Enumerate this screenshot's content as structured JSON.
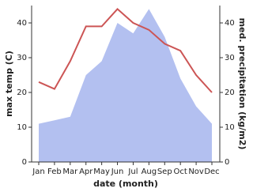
{
  "chart_data": {
    "type": "line",
    "categories": [
      "Jan",
      "Feb",
      "Mar",
      "Apr",
      "May",
      "Jun",
      "Jul",
      "Aug",
      "Sep",
      "Oct",
      "Nov",
      "Dec"
    ],
    "series": [
      {
        "name": "med. precipitation (kg/m2)",
        "type": "area",
        "color": "#b3c0f0",
        "axis": "y2",
        "values": [
          11,
          12,
          13,
          25,
          29,
          40,
          37,
          44,
          36,
          24,
          16,
          11
        ]
      },
      {
        "name": "max temp (C)",
        "type": "line",
        "color": "#cc5555",
        "values": [
          23,
          21,
          29,
          39,
          39,
          44,
          40,
          38,
          34,
          32,
          25,
          20
        ]
      }
    ],
    "ylabel": "max temp (C)",
    "y2label": "med. precipitation (kg/m2)",
    "xlabel": "date (month)",
    "ylim": [
      0,
      45
    ],
    "yticks": [
      0,
      10,
      20,
      30,
      40
    ],
    "y2lim": [
      0,
      45
    ],
    "y2ticks": [
      0,
      10,
      20,
      30,
      40
    ]
  }
}
